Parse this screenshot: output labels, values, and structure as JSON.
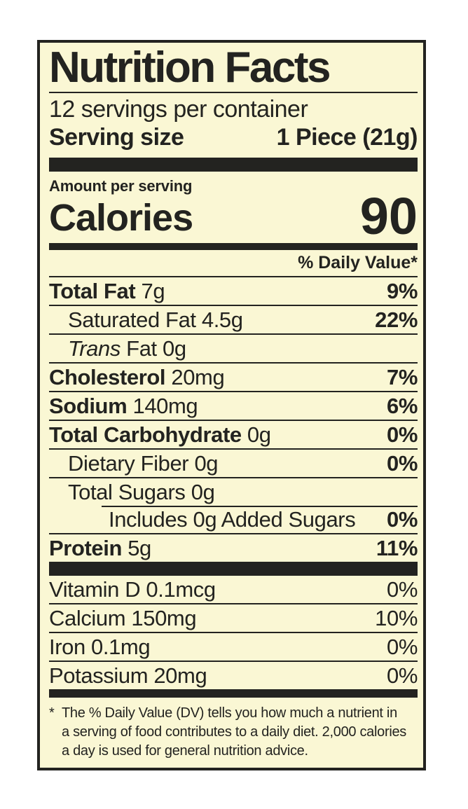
{
  "label": {
    "title": "Nutrition Facts",
    "servings_per_container": "12 servings per container",
    "serving_size_label": "Serving size",
    "serving_size_value": "1 Piece (21g)",
    "amount_per_serving": "Amount per serving",
    "calories_label": "Calories",
    "calories_value": "90",
    "daily_value_header": "% Daily Value*",
    "nutrients": [
      {
        "name": "Total Fat",
        "amount": "7g",
        "dv": "9%",
        "bold": true,
        "indent": 0
      },
      {
        "name": "Saturated Fat",
        "amount": "4.5g",
        "dv": "22%",
        "bold": false,
        "indent": 1
      },
      {
        "name_italic": "Trans",
        "name": "Fat",
        "amount": "0g",
        "dv": "",
        "bold": false,
        "indent": 1
      },
      {
        "name": "Cholesterol",
        "amount": "20mg",
        "dv": "7%",
        "bold": true,
        "indent": 0
      },
      {
        "name": "Sodium",
        "amount": "140mg",
        "dv": "6%",
        "bold": true,
        "indent": 0
      },
      {
        "name": "Total Carbohydrate",
        "amount": "0g",
        "dv": "0%",
        "bold": true,
        "indent": 0
      },
      {
        "name": "Dietary Fiber",
        "amount": "0g",
        "dv": "0%",
        "bold": false,
        "indent": 1
      },
      {
        "name": "Total Sugars",
        "amount": "0g",
        "dv": "",
        "bold": false,
        "indent": 1
      },
      {
        "name": "Includes 0g Added Sugars",
        "amount": "",
        "dv": "0%",
        "bold": false,
        "indent": 2,
        "partial_rule": true
      },
      {
        "name": "Protein",
        "amount": "5g",
        "dv": "11%",
        "bold": true,
        "indent": 0
      }
    ],
    "vitamins": [
      {
        "name": "Vitamin D",
        "amount": "0.1mcg",
        "dv": "0%"
      },
      {
        "name": "Calcium",
        "amount": "150mg",
        "dv": "10%"
      },
      {
        "name": "Iron",
        "amount": "0.1mg",
        "dv": "0%"
      },
      {
        "name": "Potassium",
        "amount": "20mg",
        "dv": "0%"
      }
    ],
    "footnote": {
      "marker": "*",
      "lines": [
        "The % Daily Value (DV) tells you how much a nutrient in",
        "a serving of food contributes to a daily diet. 2,000 calories",
        "a day is used for general nutrition advice."
      ]
    }
  },
  "colors": {
    "label_background": "#FAF7D4",
    "ink": "#232320",
    "page_background": "#FFFFFF"
  }
}
